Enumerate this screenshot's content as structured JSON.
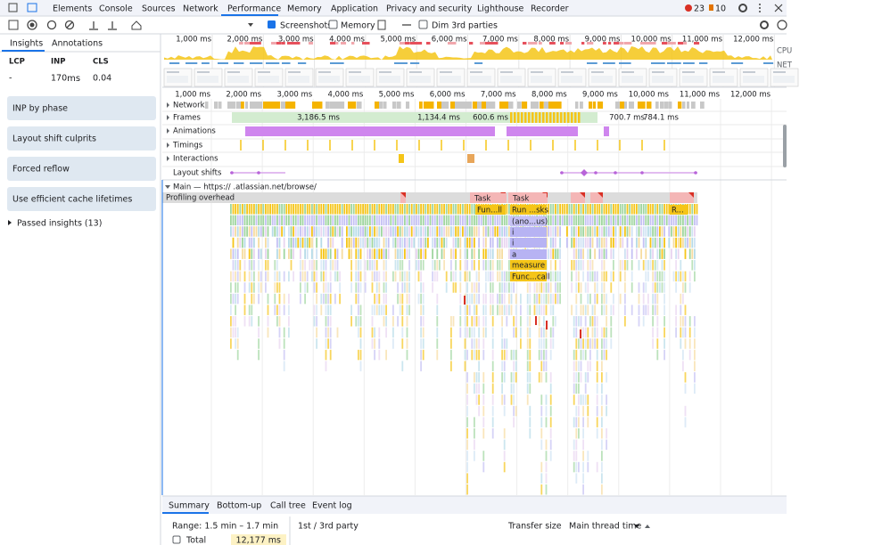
{
  "devtools": {
    "tabs": [
      "Elements",
      "Console",
      "Sources",
      "Network",
      "Performance",
      "Memory",
      "Application",
      "Privacy and security",
      "Lighthouse",
      "Recorder"
    ],
    "issues": {
      "errors": "23",
      "warnings": "10"
    },
    "toolbar": {
      "screenshots": "Screenshots",
      "memory": "Memory",
      "dim": "Dim 3rd parties"
    },
    "sidebar": {
      "tabs": [
        "Insights",
        "Annotations"
      ],
      "metrics": [
        {
          "label": "LCP",
          "value": "-"
        },
        {
          "label": "INP",
          "value": "170",
          "unit": "ms"
        },
        {
          "label": "CLS",
          "value": "0.04"
        }
      ],
      "insights": [
        "INP by phase",
        "Layout shift culprits",
        "Forced reflow",
        "Use efficient cache lifetimes"
      ],
      "passed": "Passed insights (13)"
    },
    "overview": {
      "ticks": [
        "1,000 ms",
        "2,000 ms",
        "3,000 ms",
        "4,000 ms",
        "5,000 ms",
        "6,000 ms",
        "7,000 ms",
        "8,000 ms",
        "9,000 ms",
        "10,000 ms",
        "11,000 ms",
        "12,000 ms"
      ],
      "cpu": "CPU",
      "net": "NET"
    },
    "timeline": {
      "ticks": [
        "1,000 ms",
        "2,000 ms",
        "3,000 ms",
        "4,000 ms",
        "5,000 ms",
        "6,000 ms",
        "7,000 ms",
        "8,000 ms",
        "9,000 ms",
        "10,000 ms",
        "11,000 ms",
        "12,000 ms"
      ],
      "tracks": [
        "Network",
        "Frames",
        "Animations",
        "Timings",
        "Interactions",
        "Layout shifts"
      ],
      "frames": [
        "3,186.5 ms",
        "1,134.4 ms",
        "600.6 ms",
        "700.7 ms",
        "784.1 ms"
      ],
      "main": "Main — https://            .atlassian.net/browse/",
      "profiling": "Profiling overhead",
      "flame_labels": [
        "Task",
        "Task",
        "Fun...ll",
        "Run ...sks",
        "(ano...us)",
        "i",
        "i",
        "a",
        "measure",
        "Func...call",
        "R..."
      ]
    },
    "bottom": {
      "tabs": [
        "Summary",
        "Bottom-up",
        "Call tree",
        "Event log"
      ],
      "range": "Range: 1.5 min – 1.7 min",
      "columns": [
        "1st / 3rd party",
        "Transfer size",
        "Main thread time"
      ],
      "total": "Total",
      "total_value": "12,177 ms"
    }
  }
}
